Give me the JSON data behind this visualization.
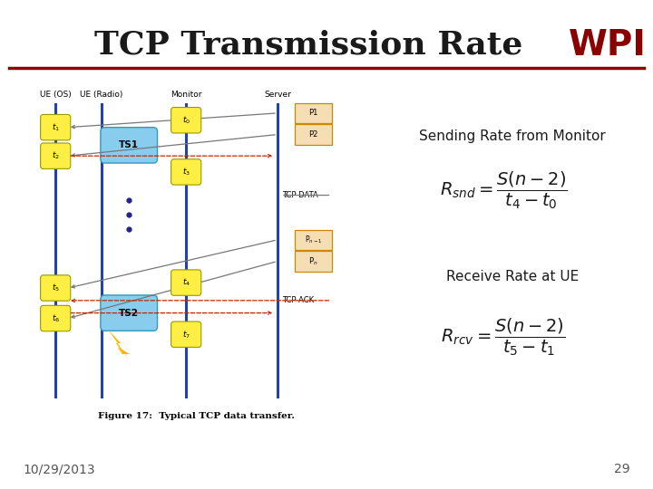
{
  "title": "TCP Transmission Rate",
  "title_color": "#1a1a1a",
  "wpi_text": "WPI",
  "wpi_color": "#8B0000",
  "title_fontsize": 26,
  "wpi_fontsize": 28,
  "red_line_color": "#8B0000",
  "sending_label": "Sending Rate from Monitor",
  "sending_label_fontsize": 11,
  "receive_label": "Receive Rate at UE",
  "receive_label_fontsize": 11,
  "formula_fontsize": 14,
  "date_text": "10/29/2013",
  "page_num": "29",
  "footer_fontsize": 10,
  "bg_color": "#ffffff"
}
